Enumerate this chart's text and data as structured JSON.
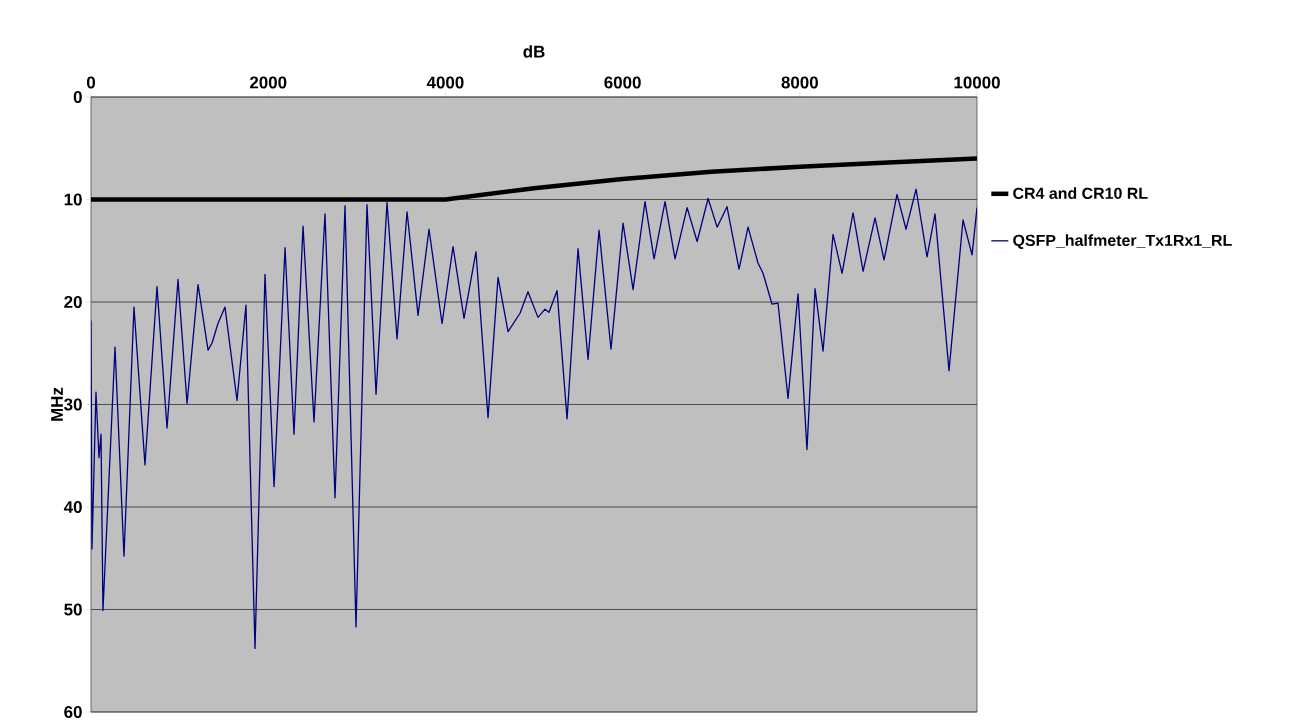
{
  "chart_data": {
    "type": "line",
    "xlabel": "dB",
    "ylabel": "MHz",
    "xlim": [
      0,
      10000
    ],
    "xticks": [
      0,
      2000,
      4000,
      6000,
      8000,
      10000
    ],
    "ylim": [
      60,
      0
    ],
    "yticks": [
      0,
      10,
      20,
      30,
      40,
      50,
      60
    ],
    "grid": "y",
    "legend": "right",
    "series": [
      {
        "name": "CR4 and CR10 RL",
        "color": "#000000",
        "x": [
          0,
          4000,
          5000,
          6000,
          7000,
          8000,
          9000,
          10000
        ],
        "values": [
          10,
          10,
          8.9,
          8.0,
          7.3,
          6.8,
          6.4,
          6.0
        ]
      },
      {
        "name": "QSFP_halfmeter_Tx1Rx1_RL",
        "color": "#000080",
        "x": [
          0,
          11,
          56,
          90,
          113,
          135,
          271,
          372,
          485,
          609,
          745,
          858,
          982,
          1084,
          1208,
          1321,
          1366,
          1433,
          1512,
          1648,
          1749,
          1851,
          1964,
          2066,
          2190,
          2291,
          2393,
          2517,
          2641,
          2754,
          2867,
          2991,
          3115,
          3217,
          3341,
          3454,
          3567,
          3691,
          3815,
          3962,
          4086,
          4210,
          4345,
          4481,
          4594,
          4707,
          4842,
          4932,
          5045,
          5124,
          5169,
          5260,
          5373,
          5497,
          5610,
          5734,
          5869,
          6005,
          6118,
          6253,
          6355,
          6479,
          6592,
          6728,
          6841,
          6965,
          7067,
          7178,
          7314,
          7416,
          7528,
          7585,
          7686,
          7754,
          7867,
          7980,
          8081,
          8172,
          8262,
          8375,
          8477,
          8601,
          8714,
          8849,
          8951,
          9097,
          9199,
          9312,
          9436,
          9526,
          9684,
          9842,
          9944,
          10000
        ],
        "values": [
          21.8,
          44.1,
          28.8,
          35.2,
          32.9,
          50.1,
          24.4,
          44.8,
          20.5,
          35.9,
          18.5,
          32.3,
          17.8,
          29.9,
          18.3,
          24.7,
          24.0,
          22.1,
          20.5,
          29.6,
          20.3,
          53.8,
          17.3,
          38.0,
          14.7,
          32.9,
          12.6,
          31.7,
          11.4,
          39.1,
          10.6,
          51.7,
          10.5,
          29.0,
          10.3,
          23.6,
          11.2,
          21.3,
          12.9,
          22.1,
          14.6,
          21.6,
          15.1,
          31.3,
          17.6,
          22.9,
          21.1,
          19.0,
          21.5,
          20.7,
          21.0,
          18.9,
          31.4,
          14.8,
          25.6,
          13.0,
          24.6,
          12.3,
          18.8,
          10.2,
          15.8,
          10.2,
          15.8,
          10.8,
          14.1,
          9.9,
          12.7,
          10.7,
          16.8,
          12.7,
          16.2,
          17.2,
          20.2,
          20.1,
          29.4,
          19.2,
          34.4,
          18.7,
          24.8,
          13.4,
          17.2,
          11.3,
          17.0,
          11.8,
          15.9,
          9.5,
          12.9,
          9.0,
          15.6,
          11.4,
          26.7,
          12.0,
          15.4,
          10.8
        ]
      }
    ]
  }
}
